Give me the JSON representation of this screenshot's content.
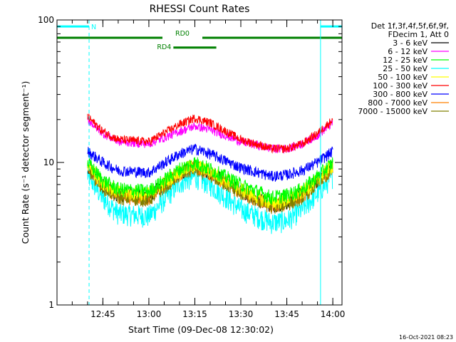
{
  "chart_data": {
    "type": "line",
    "title": "RHESSI Count Rates",
    "xlabel": "Start Time (09-Dec-08 12:30:02)",
    "ylabel": "Count Rate (s⁻¹ detector segment⁻¹)",
    "y_scale": "log",
    "ylim": [
      1,
      100
    ],
    "x_range": [
      "12:30:02",
      "14:03:00"
    ],
    "x_ticks": [
      "12:45",
      "13:00",
      "13:15",
      "13:30",
      "13:45",
      "14:00"
    ],
    "y_ticks": [
      "1",
      "10",
      "100"
    ],
    "x": [
      "12:40",
      "12:45",
      "12:50",
      "13:00",
      "13:10",
      "13:15",
      "13:20",
      "13:30",
      "13:40",
      "13:45",
      "13:50",
      "13:55",
      "14:00"
    ],
    "series": [
      {
        "name": "3 - 6 keV",
        "color": "#000000",
        "values": [
          9.5,
          7.0,
          6.0,
          5.8,
          8.5,
          9.5,
          8.5,
          6.3,
          5.0,
          5.3,
          6.0,
          7.5,
          9.5
        ]
      },
      {
        "name": "6 - 12 keV",
        "color": "#ff00ff",
        "values": [
          20,
          16,
          14,
          13.5,
          16.5,
          18,
          17,
          14,
          12.5,
          12.5,
          13.5,
          15.5,
          19
        ]
      },
      {
        "name": "12 - 25 keV",
        "color": "#00ff00",
        "values": [
          10,
          7.5,
          6.5,
          6.3,
          9,
          10,
          9,
          7,
          5.7,
          5.9,
          6.5,
          8,
          10
        ]
      },
      {
        "name": "25 - 50 keV",
        "color": "#00ffff",
        "values": [
          8.2,
          5.6,
          4.4,
          4.2,
          7.2,
          8.0,
          7.0,
          4.7,
          3.8,
          3.9,
          4.7,
          6.1,
          8.0
        ]
      },
      {
        "name": "50 - 100 keV",
        "color": "#ffff00",
        "values": [
          9.7,
          7.2,
          6.2,
          6.0,
          8.7,
          9.6,
          8.7,
          6.5,
          5.2,
          5.5,
          6.2,
          7.6,
          9.6
        ]
      },
      {
        "name": "100 - 300 keV",
        "color": "#ff0000",
        "values": [
          21,
          16.5,
          14.5,
          14,
          18.5,
          20.5,
          19,
          14.5,
          12.5,
          12.5,
          13.5,
          16,
          20
        ]
      },
      {
        "name": "300 - 800 keV",
        "color": "#0000ff",
        "values": [
          12,
          10,
          8.8,
          8.5,
          11.5,
          12.5,
          11.5,
          9.2,
          8.0,
          8.2,
          8.8,
          10,
          12
        ]
      },
      {
        "name": "800 - 7000 keV",
        "color": "#ff8000",
        "values": [
          9.3,
          6.9,
          5.8,
          5.6,
          8.4,
          9.3,
          8.4,
          6.2,
          5.0,
          5.2,
          5.8,
          7.3,
          9.2
        ]
      },
      {
        "name": "7000 - 15000 keV",
        "color": "#808000",
        "values": [
          9.0,
          6.7,
          5.7,
          5.5,
          8.2,
          9.0,
          8.2,
          6.1,
          4.9,
          5.1,
          5.7,
          7.1,
          9.0
        ]
      }
    ],
    "legend": {
      "position": "right",
      "header": [
        "Det 1f,3f,4f,5f,6f,9f,",
        "FDecim 1, Att 0"
      ]
    },
    "annotations": [
      {
        "label": "N",
        "color": "#00ffff",
        "start": "12:30:02",
        "end": "12:40:30",
        "level": 90
      },
      {
        "label": "",
        "color": "#00ffff",
        "start": "13:56:00",
        "end": "14:03:00",
        "level": 90
      },
      {
        "label": "RD0",
        "color": "#008000",
        "start": "12:30:02",
        "end": "14:03:00",
        "level": 75
      },
      {
        "label": "RD4",
        "color": "#008000",
        "start": "13:08:00",
        "end": "13:22:00",
        "level": 64
      }
    ],
    "vertical_markers": [
      {
        "time": "12:40:30",
        "color": "#00ffff",
        "style": "dashed"
      },
      {
        "time": "13:56:00",
        "color": "#00ffff",
        "style": "solid"
      },
      {
        "time": "14:03:00",
        "color": "#00ffff",
        "style": "dashed"
      }
    ],
    "grid": false
  },
  "timestamp": "16-Oct-2021 08:23"
}
